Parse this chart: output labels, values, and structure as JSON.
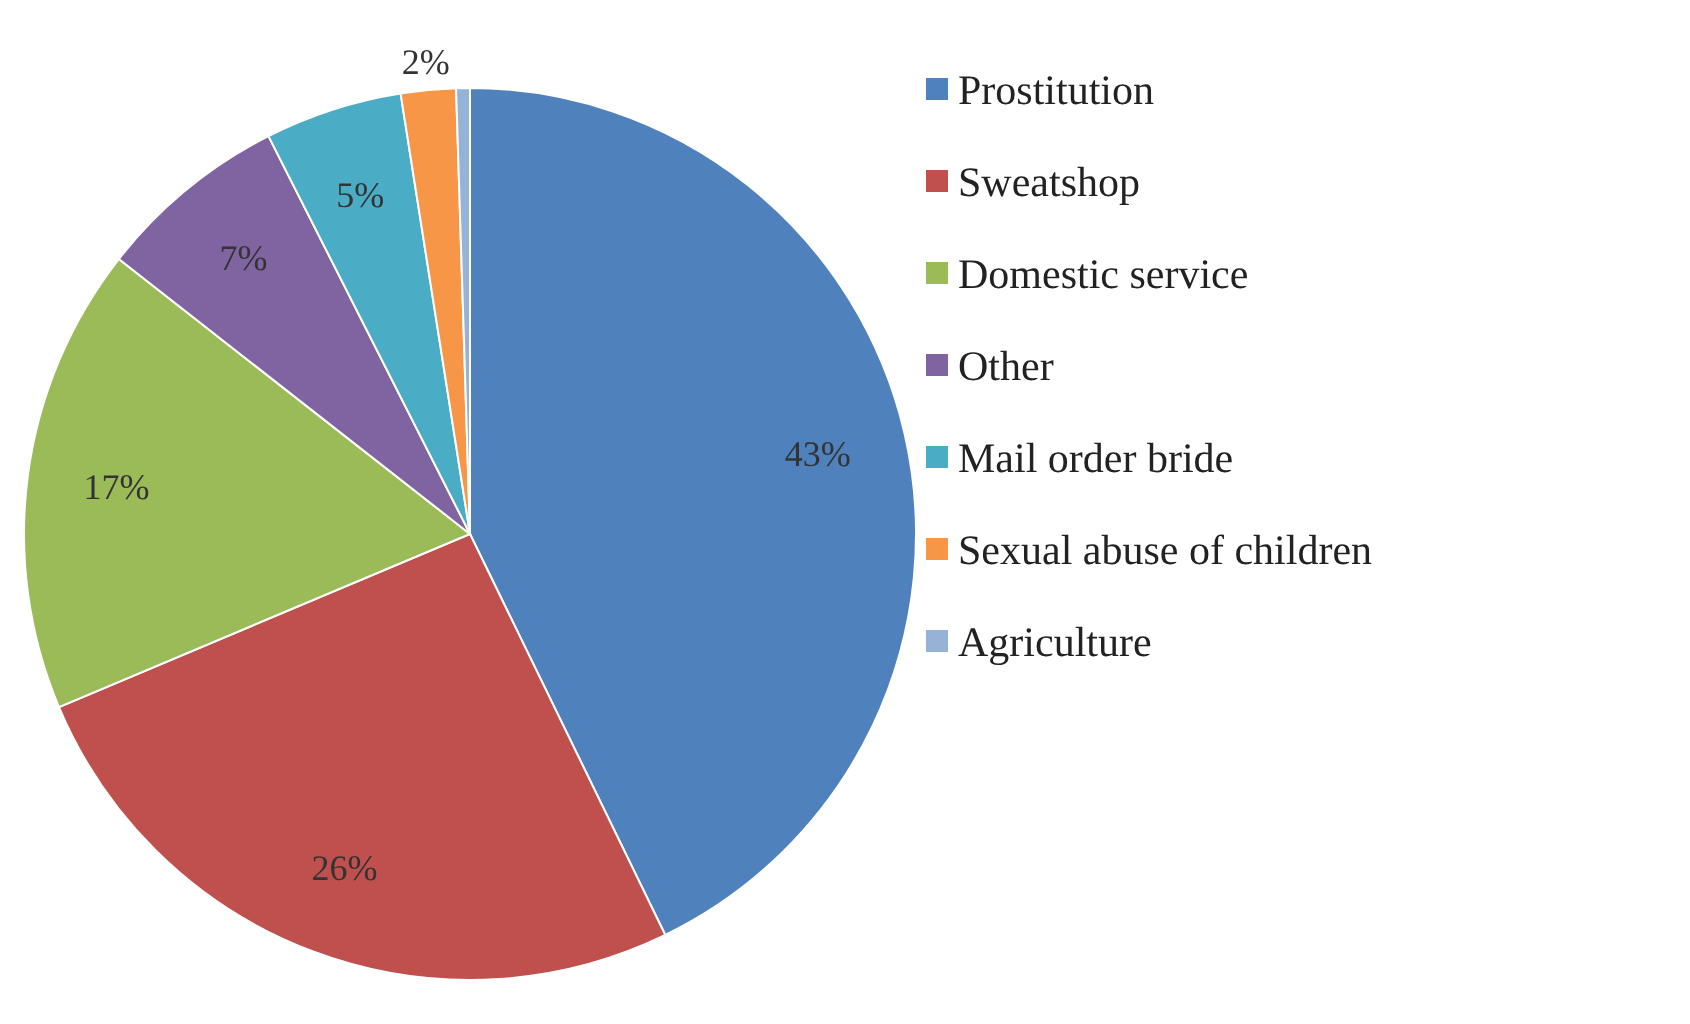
{
  "chart_data": {
    "type": "pie",
    "categories": [
      "Prostitution",
      "Sweatshop",
      "Domestic service",
      "Other",
      "Mail order bride",
      "Sexual abuse of children",
      "Agriculture"
    ],
    "values": [
      43,
      26,
      17,
      7,
      5,
      2,
      0.5
    ],
    "value_labels": [
      "43%",
      "26%",
      "17%",
      "7%",
      "5%",
      "2%",
      null
    ],
    "colors": [
      "#4f81bd",
      "#c0504d",
      "#9bbb59",
      "#8064a2",
      "#4bacc6",
      "#f79646",
      "#95b3d7"
    ],
    "legend": "right"
  }
}
